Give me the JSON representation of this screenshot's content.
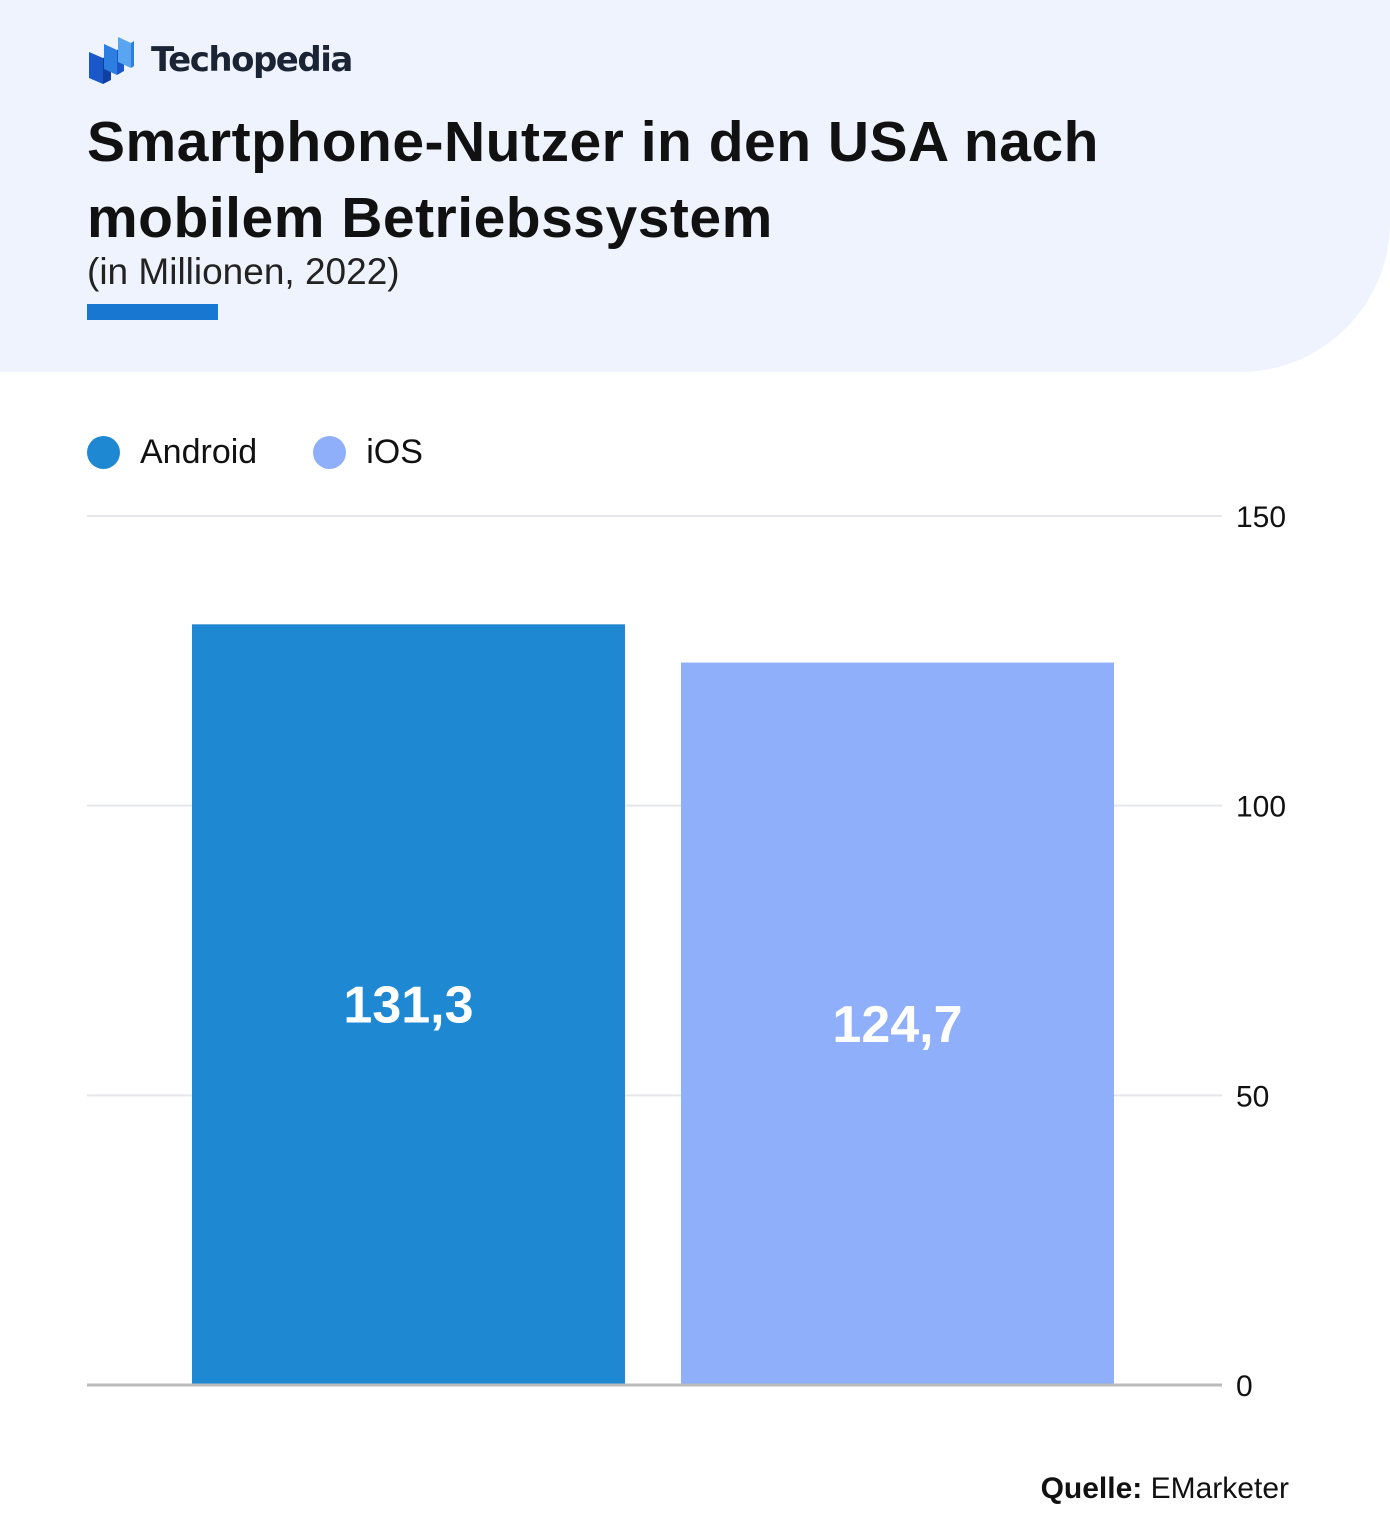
{
  "brand": {
    "name": "Techopedia",
    "logo_icon": "techopedia-logo-icon"
  },
  "header": {
    "title": "Smartphone-Nutzer in den USA nach mobilem Betriebssystem",
    "subtitle": "(in Millionen, 2022)"
  },
  "colors": {
    "header_background": "#eff3fd",
    "accent": "#1877d0",
    "android": "#1e88d2",
    "ios": "#8faffa",
    "gridline": "#e4e6ea",
    "baseline": "#bbbbbb"
  },
  "chart_data": {
    "type": "bar",
    "categories": [
      "Android",
      "iOS"
    ],
    "values": [
      131.3,
      124.7
    ],
    "value_labels": [
      "131,3",
      "124,7"
    ],
    "colors": [
      "#1e88d2",
      "#8faffa"
    ],
    "title": "Smartphone-Nutzer in den USA nach mobilem Betriebssystem",
    "subtitle": "(in Millionen, 2022)",
    "xlabel": "",
    "ylabel": "",
    "ylim": [
      0,
      150
    ],
    "yticks": [
      0,
      50,
      100,
      150
    ],
    "y_axis_side": "right",
    "grid": true,
    "legend": {
      "position": "top-left",
      "entries": [
        "Android",
        "iOS"
      ]
    }
  },
  "source": {
    "label": "Quelle:",
    "value": "EMarketer"
  }
}
